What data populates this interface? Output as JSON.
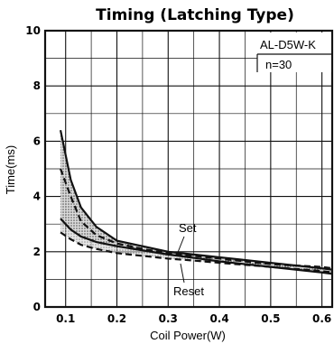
{
  "chart_data": {
    "type": "line",
    "title": "Timing (Latching Type)",
    "xlabel": "Coil Power(W)",
    "ylabel": "Time(ms)",
    "xlim": [
      0.06,
      0.62
    ],
    "ylim": [
      0,
      10
    ],
    "x_ticks": [
      {
        "value": 0.1,
        "label": "0.1"
      },
      {
        "value": 0.2,
        "label": "0.2"
      },
      {
        "value": 0.3,
        "label": "0.3"
      },
      {
        "value": 0.4,
        "label": "0.4"
      },
      {
        "value": 0.5,
        "label": "0.5"
      },
      {
        "value": 0.6,
        "label": "0.6"
      }
    ],
    "y_ticks": [
      {
        "value": 0,
        "label": "0"
      },
      {
        "value": 2,
        "label": "2"
      },
      {
        "value": 4,
        "label": "4"
      },
      {
        "value": 6,
        "label": "6"
      },
      {
        "value": 8,
        "label": "8"
      },
      {
        "value": 10,
        "label": "10"
      }
    ],
    "grid": true,
    "annotations": {
      "model": "AL-D5W-K",
      "sample": "n=30",
      "set_label": "Set",
      "reset_label": "Reset"
    },
    "series": [
      {
        "name": "Set",
        "style": "band",
        "x": [
          0.09,
          0.11,
          0.13,
          0.16,
          0.2,
          0.25,
          0.3,
          0.35,
          0.4,
          0.5,
          0.6,
          0.62
        ],
        "upper": [
          6.4,
          4.6,
          3.6,
          2.9,
          2.4,
          2.2,
          2.0,
          1.9,
          1.8,
          1.6,
          1.4,
          1.35
        ],
        "lower": [
          3.2,
          2.8,
          2.55,
          2.35,
          2.2,
          2.05,
          1.9,
          1.78,
          1.65,
          1.45,
          1.25,
          1.2
        ]
      },
      {
        "name": "Reset",
        "style": "band",
        "x": [
          0.09,
          0.11,
          0.13,
          0.16,
          0.2,
          0.25,
          0.3,
          0.35,
          0.4,
          0.5,
          0.6,
          0.62
        ],
        "upper": [
          5.0,
          4.0,
          3.1,
          2.6,
          2.3,
          2.1,
          1.95,
          1.85,
          1.75,
          1.55,
          1.45,
          1.4
        ],
        "lower": [
          2.7,
          2.45,
          2.25,
          2.1,
          1.95,
          1.85,
          1.75,
          1.68,
          1.6,
          1.45,
          1.3,
          1.25
        ]
      }
    ]
  }
}
